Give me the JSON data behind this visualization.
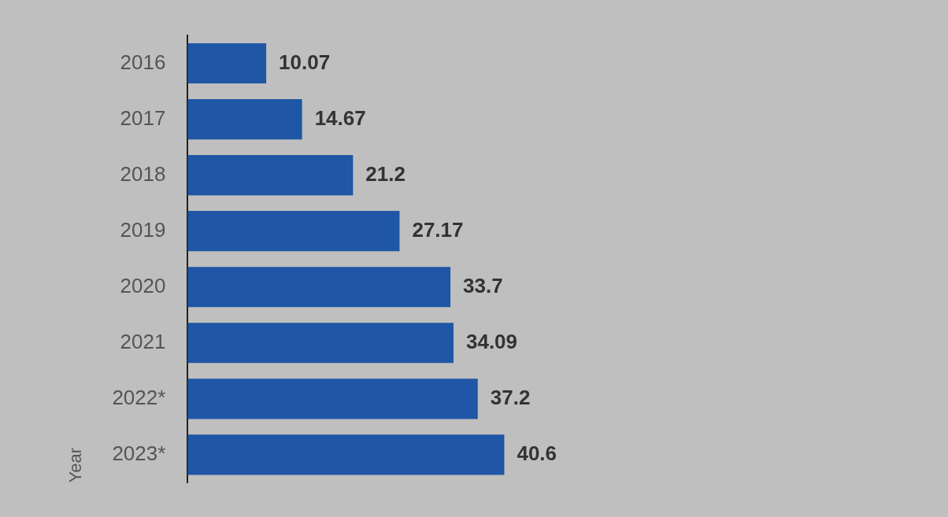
{
  "chart_data": {
    "type": "bar",
    "orientation": "horizontal",
    "ylabel": "Year",
    "categories": [
      "2016",
      "2017",
      "2018",
      "2019",
      "2020",
      "2021",
      "2022*",
      "2023*"
    ],
    "values": [
      10.07,
      14.67,
      21.2,
      27.17,
      33.7,
      34.09,
      37.2,
      40.6
    ],
    "color": "#1f56a5",
    "data_labels": true,
    "tick_labels": "y"
  }
}
